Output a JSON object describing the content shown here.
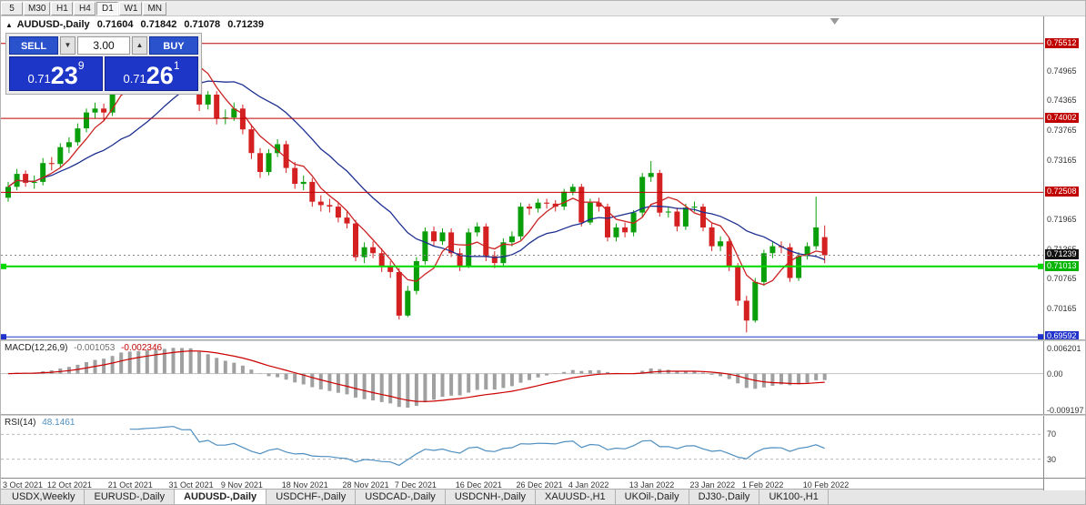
{
  "toolbar": {
    "timeframes": [
      {
        "label": "5",
        "active": false
      },
      {
        "label": "M30",
        "active": false
      },
      {
        "label": "H1",
        "active": false
      },
      {
        "label": "H4",
        "active": false
      },
      {
        "label": "D1",
        "active": true
      },
      {
        "label": "W1",
        "active": false
      },
      {
        "label": "MN",
        "active": false
      }
    ]
  },
  "chart_header": {
    "collapse_marker": "▲",
    "symbol": "AUDUSD-,Daily",
    "open": "0.71604",
    "high": "0.71842",
    "low": "0.71078",
    "close": "0.71239"
  },
  "trade_panel": {
    "sell_label": "SELL",
    "buy_label": "BUY",
    "volume": "3.00",
    "spin_down_icon": "▼",
    "spin_up_icon": "▲",
    "bid": {
      "prefix": "0.71",
      "big": "23",
      "pip": "9"
    },
    "ask": {
      "prefix": "0.71",
      "big": "26",
      "pip": "1"
    }
  },
  "indicators": {
    "macd": {
      "label": "MACD(12,26,9)",
      "main_value": "-0.001053",
      "signal_value": "-0.002346",
      "axis_labels": [
        {
          "label": "0.006201",
          "value": 0.006201
        },
        {
          "label": "0.00",
          "value": 0
        },
        {
          "label": "-0.009197",
          "value": -0.009197
        }
      ]
    },
    "rsi": {
      "label": "RSI(14)",
      "value": "48.1461",
      "levels": [
        70,
        30
      ]
    }
  },
  "bottom_tabs": [
    {
      "label": "USDX,Weekly",
      "active": false
    },
    {
      "label": "EURUSD-,Daily",
      "active": false
    },
    {
      "label": "AUDUSD-,Daily",
      "active": true
    },
    {
      "label": "USDCHF-,Daily",
      "active": false
    },
    {
      "label": "USDCAD-,Daily",
      "active": false
    },
    {
      "label": "USDCNH-,Daily",
      "active": false
    },
    {
      "label": "XAUUSD-,H1",
      "active": false
    },
    {
      "label": "UKOil-,Daily",
      "active": false
    },
    {
      "label": "DJ30-,Daily",
      "active": false
    },
    {
      "label": "UK100-,H1",
      "active": false
    }
  ],
  "chart_data": {
    "type": "candlestick",
    "symbol": "AUDUSD-,Daily",
    "price_range": [
      0.6954,
      0.7606
    ],
    "current_price": 0.71239,
    "y_ticks": [
      0.74965,
      0.74365,
      0.73765,
      0.73165,
      0.71965,
      0.71365,
      0.70765,
      0.70165
    ],
    "badges": [
      {
        "price": 0.75512,
        "color": "#c00000"
      },
      {
        "price": 0.74002,
        "color": "#c00000"
      },
      {
        "price": 0.72508,
        "color": "#c00000"
      },
      {
        "price": 0.71239,
        "color": "#111111"
      },
      {
        "price": 0.71013,
        "color": "#00b400"
      },
      {
        "price": 0.69592,
        "color": "#2233cc"
      }
    ],
    "hlines": [
      {
        "price": 0.75512,
        "color": "#c00000",
        "width": 1,
        "markers": false
      },
      {
        "price": 0.74002,
        "color": "#c00000",
        "width": 1,
        "markers": false
      },
      {
        "price": 0.72508,
        "color": "#c00000",
        "width": 1,
        "markers": false
      },
      {
        "price": 0.71013,
        "color": "#00d800",
        "width": 2,
        "markers": true
      },
      {
        "price": 0.69592,
        "color": "#2233cc",
        "width": 1,
        "markers": true
      }
    ],
    "ma_periods": [
      5,
      15
    ],
    "macd_range": [
      -0.01,
      0.008
    ],
    "colors": {
      "up": "#0a9e0a",
      "down": "#d42020",
      "ma_fast": "#cc2222",
      "ma_slow": "#1c2f8f",
      "macd_hist": "#a0a0a0",
      "macd_signal": "#cc0000",
      "rsi": "#4f8fc0",
      "current_line": "#888888"
    },
    "date_labels": [
      {
        "label": "3 Oct 2021",
        "i": 1
      },
      {
        "label": "12 Oct 2021",
        "i": 7
      },
      {
        "label": "21 Oct 2021",
        "i": 14
      },
      {
        "label": "31 Oct 2021",
        "i": 21
      },
      {
        "label": "9 Nov 2021",
        "i": 27
      },
      {
        "label": "18 Nov 2021",
        "i": 34
      },
      {
        "label": "28 Nov 2021",
        "i": 41
      },
      {
        "label": "7 Dec 2021",
        "i": 47
      },
      {
        "label": "16 Dec 2021",
        "i": 54
      },
      {
        "label": "26 Dec 2021",
        "i": 61
      },
      {
        "label": "4 Jan 2022",
        "i": 67
      },
      {
        "label": "13 Jan 2022",
        "i": 74
      },
      {
        "label": "23 Jan 2022",
        "i": 81
      },
      {
        "label": "1 Feb 2022",
        "i": 87
      },
      {
        "label": "10 Feb 2022",
        "i": 94
      }
    ],
    "candles": [
      [
        0.724,
        0.7272,
        0.7232,
        0.7262
      ],
      [
        0.7262,
        0.7298,
        0.7255,
        0.7288
      ],
      [
        0.7288,
        0.7295,
        0.7262,
        0.727
      ],
      [
        0.727,
        0.7285,
        0.7258,
        0.7272
      ],
      [
        0.7272,
        0.732,
        0.7265,
        0.731
      ],
      [
        0.731,
        0.7322,
        0.7295,
        0.7308
      ],
      [
        0.7308,
        0.735,
        0.73,
        0.7342
      ],
      [
        0.7342,
        0.7362,
        0.733,
        0.7352
      ],
      [
        0.7352,
        0.739,
        0.7345,
        0.738
      ],
      [
        0.738,
        0.742,
        0.7372,
        0.7412
      ],
      [
        0.7412,
        0.7432,
        0.74,
        0.742
      ],
      [
        0.742,
        0.743,
        0.7395,
        0.7412
      ],
      [
        0.7412,
        0.748,
        0.7405,
        0.7472
      ],
      [
        0.7472,
        0.7525,
        0.7465,
        0.7518
      ],
      [
        0.7518,
        0.7528,
        0.7455,
        0.7468
      ],
      [
        0.7468,
        0.7482,
        0.745,
        0.747
      ],
      [
        0.747,
        0.7498,
        0.7462,
        0.7488
      ],
      [
        0.7488,
        0.7512,
        0.7478,
        0.75
      ],
      [
        0.75,
        0.753,
        0.7492,
        0.752
      ],
      [
        0.752,
        0.7556,
        0.751,
        0.7538
      ],
      [
        0.7538,
        0.7548,
        0.7505,
        0.7518
      ],
      [
        0.7518,
        0.7535,
        0.7508,
        0.752
      ],
      [
        0.752,
        0.7528,
        0.7415,
        0.7428
      ],
      [
        0.7428,
        0.7455,
        0.7418,
        0.7448
      ],
      [
        0.7448,
        0.7455,
        0.7388,
        0.74
      ],
      [
        0.74,
        0.7418,
        0.7388,
        0.7402
      ],
      [
        0.7402,
        0.7432,
        0.7395,
        0.742
      ],
      [
        0.742,
        0.7428,
        0.7368,
        0.7378
      ],
      [
        0.7378,
        0.7388,
        0.7318,
        0.733
      ],
      [
        0.733,
        0.734,
        0.728,
        0.7292
      ],
      [
        0.7292,
        0.7338,
        0.7285,
        0.733
      ],
      [
        0.733,
        0.7358,
        0.7322,
        0.7348
      ],
      [
        0.7348,
        0.7355,
        0.729,
        0.73
      ],
      [
        0.73,
        0.7312,
        0.7258,
        0.7268
      ],
      [
        0.7268,
        0.7285,
        0.7255,
        0.7272
      ],
      [
        0.7272,
        0.728,
        0.7222,
        0.7232
      ],
      [
        0.7232,
        0.7245,
        0.7212,
        0.7225
      ],
      [
        0.7225,
        0.7238,
        0.721,
        0.7222
      ],
      [
        0.7222,
        0.7232,
        0.719,
        0.72
      ],
      [
        0.72,
        0.7212,
        0.7178,
        0.7188
      ],
      [
        0.7188,
        0.7195,
        0.7112,
        0.712
      ],
      [
        0.712,
        0.715,
        0.7108,
        0.714
      ],
      [
        0.714,
        0.7152,
        0.7118,
        0.7128
      ],
      [
        0.7128,
        0.7138,
        0.709,
        0.71
      ],
      [
        0.71,
        0.7112,
        0.7078,
        0.709
      ],
      [
        0.709,
        0.7098,
        0.6994,
        0.7002
      ],
      [
        0.7002,
        0.7062,
        0.6999,
        0.7052
      ],
      [
        0.7052,
        0.712,
        0.7045,
        0.7112
      ],
      [
        0.7112,
        0.718,
        0.7105,
        0.7172
      ],
      [
        0.7172,
        0.7182,
        0.7142,
        0.7152
      ],
      [
        0.7152,
        0.7178,
        0.7145,
        0.717
      ],
      [
        0.717,
        0.7178,
        0.712,
        0.7128
      ],
      [
        0.7128,
        0.7138,
        0.7092,
        0.7102
      ],
      [
        0.7102,
        0.7178,
        0.7098,
        0.717
      ],
      [
        0.717,
        0.719,
        0.7162,
        0.7182
      ],
      [
        0.7182,
        0.7188,
        0.7112,
        0.7122
      ],
      [
        0.7122,
        0.7132,
        0.7098,
        0.7108
      ],
      [
        0.7108,
        0.7158,
        0.71,
        0.715
      ],
      [
        0.715,
        0.7172,
        0.7142,
        0.7162
      ],
      [
        0.7162,
        0.723,
        0.7155,
        0.7222
      ],
      [
        0.7222,
        0.7228,
        0.7205,
        0.7218
      ],
      [
        0.7218,
        0.7238,
        0.721,
        0.723
      ],
      [
        0.723,
        0.7238,
        0.7218,
        0.7228
      ],
      [
        0.7228,
        0.7235,
        0.7212,
        0.7222
      ],
      [
        0.7222,
        0.7258,
        0.7215,
        0.7252
      ],
      [
        0.7252,
        0.7268,
        0.7245,
        0.7262
      ],
      [
        0.7262,
        0.7268,
        0.7182,
        0.719
      ],
      [
        0.719,
        0.7238,
        0.7185,
        0.723
      ],
      [
        0.723,
        0.724,
        0.7212,
        0.7222
      ],
      [
        0.7222,
        0.7228,
        0.7152,
        0.716
      ],
      [
        0.716,
        0.7188,
        0.7152,
        0.718
      ],
      [
        0.718,
        0.719,
        0.716,
        0.717
      ],
      [
        0.717,
        0.7215,
        0.7162,
        0.721
      ],
      [
        0.721,
        0.729,
        0.7202,
        0.7282
      ],
      [
        0.7282,
        0.7314,
        0.7272,
        0.729
      ],
      [
        0.729,
        0.7296,
        0.7202,
        0.721
      ],
      [
        0.721,
        0.7222,
        0.72,
        0.7212
      ],
      [
        0.7212,
        0.722,
        0.7172,
        0.7182
      ],
      [
        0.7182,
        0.7228,
        0.7175,
        0.722
      ],
      [
        0.722,
        0.7232,
        0.7212,
        0.7222
      ],
      [
        0.7222,
        0.7228,
        0.7172,
        0.718
      ],
      [
        0.718,
        0.7188,
        0.7132,
        0.7142
      ],
      [
        0.7142,
        0.7162,
        0.7132,
        0.7152
      ],
      [
        0.7152,
        0.7158,
        0.7092,
        0.71
      ],
      [
        0.71,
        0.7108,
        0.7022,
        0.7032
      ],
      [
        0.7032,
        0.7042,
        0.6968,
        0.6992
      ],
      [
        0.6992,
        0.7078,
        0.6988,
        0.707
      ],
      [
        0.707,
        0.7135,
        0.7062,
        0.7128
      ],
      [
        0.7128,
        0.715,
        0.7118,
        0.7142
      ],
      [
        0.7142,
        0.7152,
        0.7128,
        0.714
      ],
      [
        0.714,
        0.7148,
        0.707,
        0.7078
      ],
      [
        0.7078,
        0.713,
        0.7072,
        0.7122
      ],
      [
        0.7122,
        0.715,
        0.7115,
        0.7142
      ],
      [
        0.7142,
        0.7242,
        0.7135,
        0.718
      ],
      [
        0.71604,
        0.71842,
        0.71078,
        0.71239
      ]
    ]
  }
}
